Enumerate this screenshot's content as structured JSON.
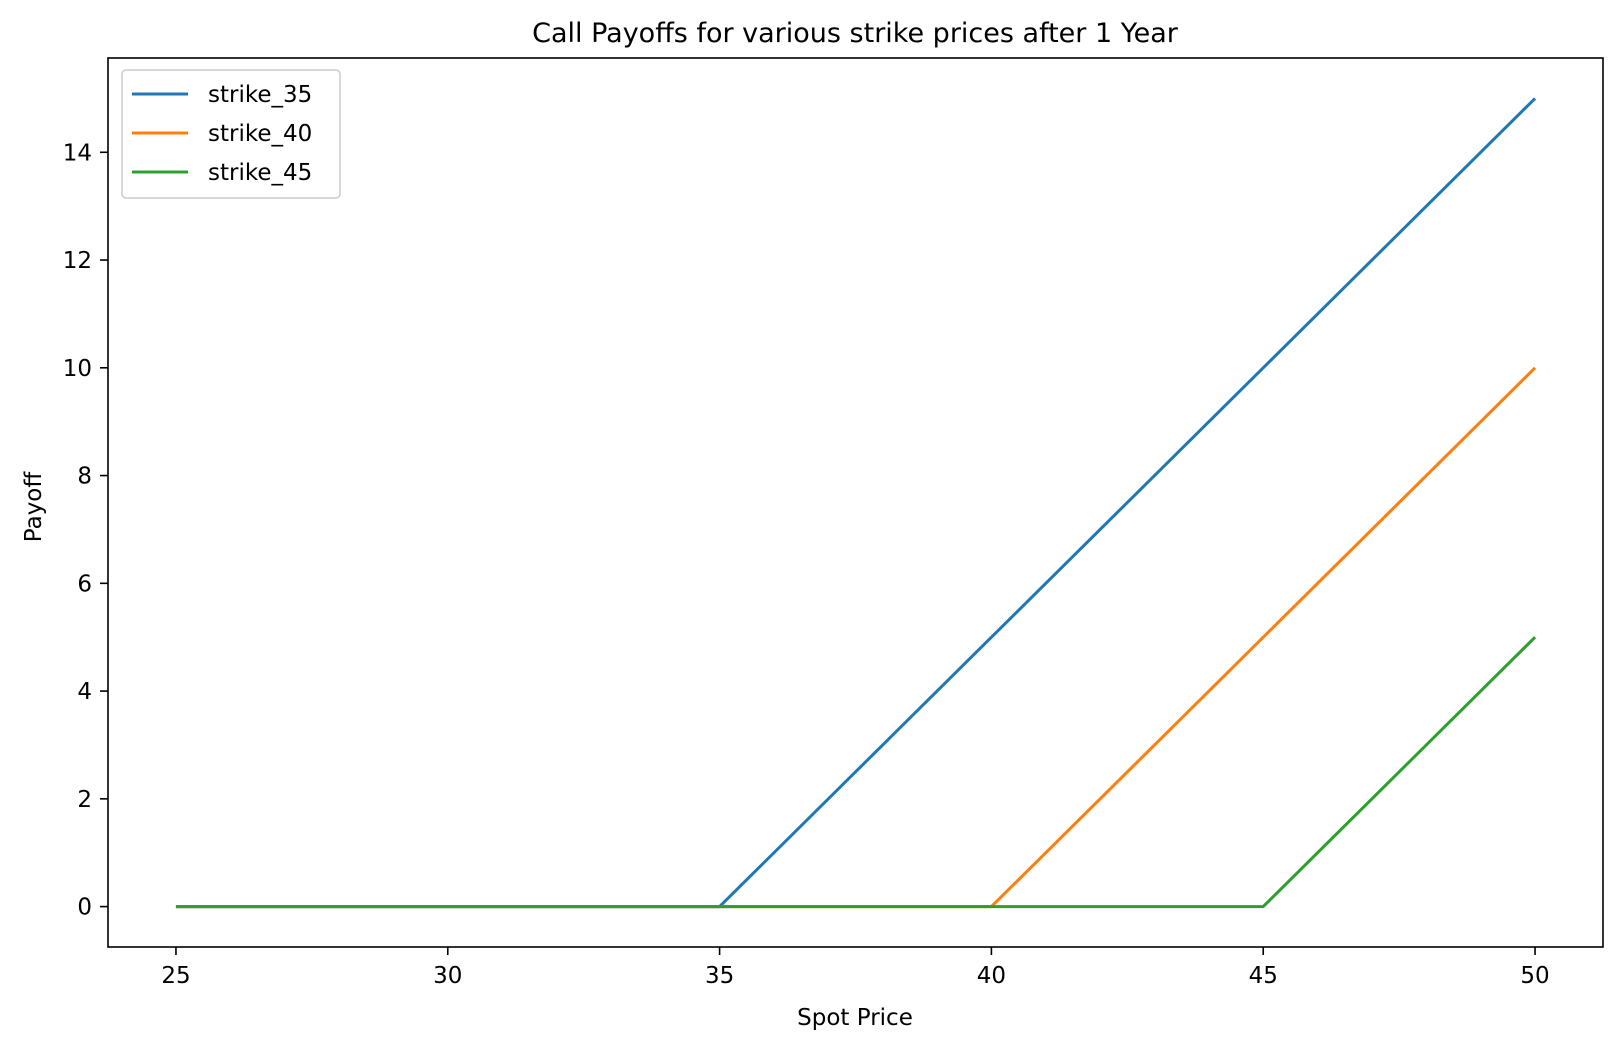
{
  "chart_data": {
    "type": "line",
    "title": "Call Payoffs for various strike prices after 1 Year",
    "xlabel": "Spot Price",
    "ylabel": "Payoff",
    "xlim": [
      23.75,
      51.25
    ],
    "ylim": [
      -0.75,
      15.75
    ],
    "xticks": [
      25,
      30,
      35,
      40,
      45,
      50
    ],
    "yticks": [
      0,
      2,
      4,
      6,
      8,
      10,
      12,
      14
    ],
    "grid": false,
    "legend_position": "top-left",
    "x": [
      25,
      35,
      40,
      45,
      50
    ],
    "series": [
      {
        "name": "strike_35",
        "color": "#1f77b4",
        "values": [
          0,
          0,
          5,
          10,
          15
        ]
      },
      {
        "name": "strike_40",
        "color": "#ff7f0e",
        "values": [
          0,
          0,
          0,
          5,
          10
        ]
      },
      {
        "name": "strike_45",
        "color": "#2ca02c",
        "values": [
          0,
          0,
          0,
          0,
          5
        ]
      }
    ]
  }
}
